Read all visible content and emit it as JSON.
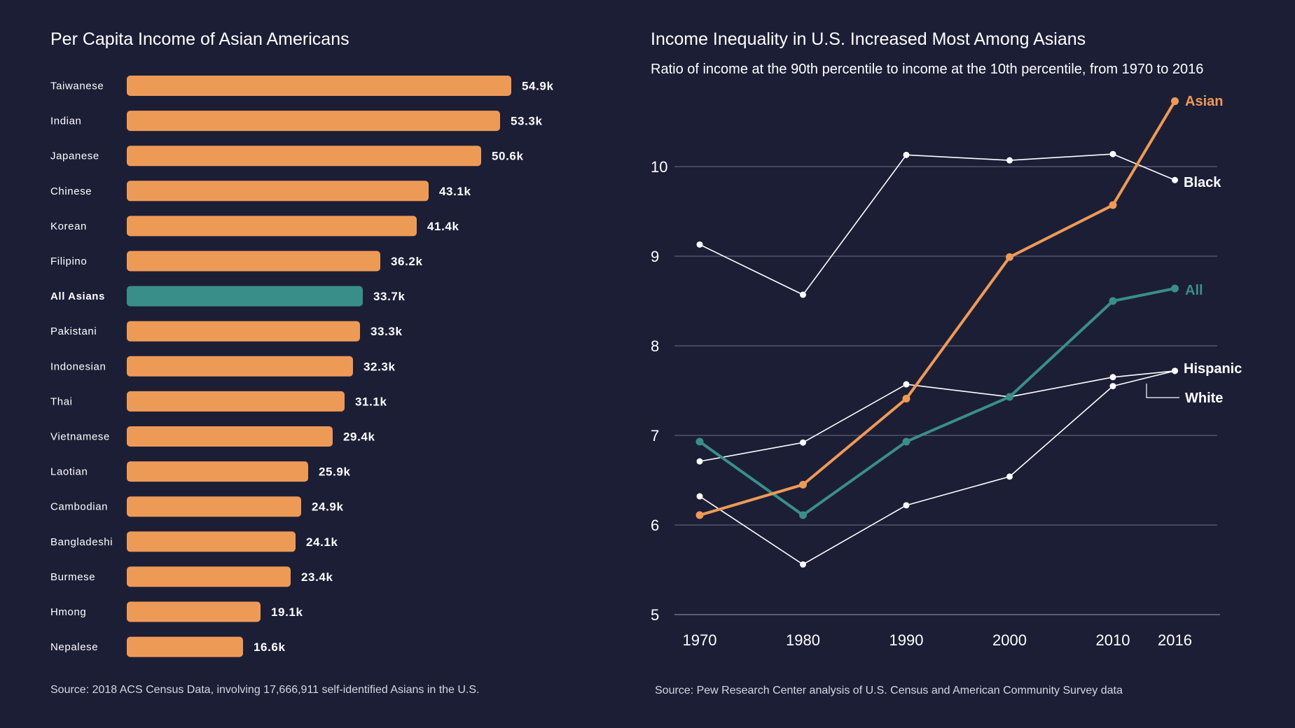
{
  "colors": {
    "background": "#1c1e36",
    "bar": "#ee9a57",
    "highlight": "#3a8e8a",
    "highlight_label": "#5fd0cb",
    "white": "#ffffff",
    "grid": "#6b6d82"
  },
  "chart_data": [
    {
      "type": "bar",
      "orientation": "horizontal",
      "title": "Per Capita Income of Asian Americans",
      "categories": [
        "Taiwanese",
        "Indian",
        "Japanese",
        "Chinese",
        "Korean",
        "Filipino",
        "All Asians",
        "Pakistani",
        "Indonesian",
        "Thai",
        "Vietnamese",
        "Laotian",
        "Cambodian",
        "Bangladeshi",
        "Burmese",
        "Hmong",
        "Nepalese"
      ],
      "values": [
        54.9,
        53.3,
        50.6,
        43.1,
        41.4,
        36.2,
        33.7,
        33.3,
        32.3,
        31.1,
        29.4,
        25.9,
        24.9,
        24.1,
        23.4,
        19.1,
        16.6
      ],
      "value_labels": [
        "54.9k",
        "53.3k",
        "50.6k",
        "43.1k",
        "41.4k",
        "36.2k",
        "33.7k",
        "33.3k",
        "32.3k",
        "31.1k",
        "29.4k",
        "25.9k",
        "24.9k",
        "24.1k",
        "23.4k",
        "19.1k",
        "16.6k"
      ],
      "highlight": "All Asians",
      "source": "Source: 2018 ACS Census Data, involving 17,666,911 self-identified Asians in the U.S."
    },
    {
      "type": "line",
      "title": "Income Inequality in U.S. Increased Most Among Asians",
      "subtitle": "Ratio of income at the 90th percentile to income at the 10th percentile, from 1970 to 2016",
      "x": [
        1970,
        1980,
        1990,
        2000,
        2010,
        2016
      ],
      "x_ticks": [
        "1970",
        "1980",
        "1990",
        "2000",
        "2010",
        "2016"
      ],
      "y_ticks": [
        "5",
        "6",
        "7",
        "8",
        "9",
        "10"
      ],
      "ylim": [
        5,
        10.8
      ],
      "grid": true,
      "series": [
        {
          "name": "Black",
          "values": [
            9.13,
            8.57,
            10.13,
            10.07,
            10.14,
            9.85
          ],
          "color": "#ffffff"
        },
        {
          "name": "Hispanic",
          "values": [
            6.71,
            6.92,
            7.57,
            7.43,
            7.65,
            7.72
          ],
          "color": "#ffffff"
        },
        {
          "name": "White",
          "values": [
            6.32,
            5.56,
            6.22,
            6.54,
            7.55,
            7.72
          ],
          "color": "#ffffff"
        },
        {
          "name": "All",
          "values": [
            6.93,
            6.11,
            6.93,
            7.43,
            8.5,
            8.64
          ],
          "color": "#3a8e8a"
        },
        {
          "name": "Asian",
          "values": [
            6.11,
            6.45,
            7.41,
            8.99,
            9.57,
            10.73
          ],
          "color": "#ee9a57"
        }
      ],
      "source": "Source: Pew Research Center analysis of U.S. Census and American Community Survey data"
    }
  ]
}
